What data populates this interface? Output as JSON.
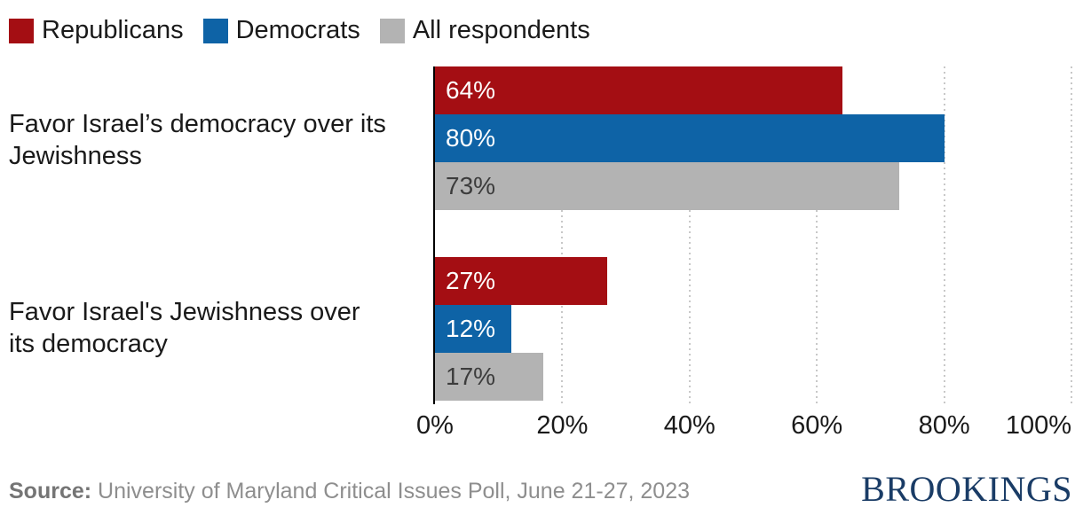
{
  "legend": {
    "items": [
      {
        "label": "Republicans"
      },
      {
        "label": "Democrats"
      },
      {
        "label": "All respondents"
      }
    ]
  },
  "chart_data": {
    "type": "bar",
    "orientation": "horizontal",
    "title": "",
    "xlabel": "",
    "ylabel": "",
    "xlim": [
      0,
      100
    ],
    "x_ticks": [
      "0%",
      "20%",
      "40%",
      "60%",
      "80%",
      "100%"
    ],
    "grid": "dotted-vertical",
    "legend_position": "top-left",
    "value_suffix": "%",
    "categories": [
      "Favor Israel’s democracy over its Jewishness",
      "Favor Israel's Jewishness over its democracy"
    ],
    "category_lines": [
      [
        "Favor Israel’s democracy over its",
        "Jewishness"
      ],
      [
        "Favor Israel's Jewishness over",
        "its democracy"
      ]
    ],
    "series": [
      {
        "name": "Republicans",
        "color": "#a40e13",
        "label_color": "#ffffff",
        "values": [
          64,
          27
        ]
      },
      {
        "name": "Democrats",
        "color": "#0e63a6",
        "label_color": "#ffffff",
        "values": [
          80,
          12
        ]
      },
      {
        "name": "All respondents",
        "color": "#b3b3b3",
        "label_color": "#3c3c3c",
        "values": [
          73,
          17
        ]
      }
    ],
    "value_labels": [
      [
        "64%",
        "80%",
        "73%"
      ],
      [
        "27%",
        "12%",
        "17%"
      ]
    ]
  },
  "colors": {
    "axis_line": "#000000",
    "gridline": "#c8c8c8",
    "text": "#1a1a1a",
    "brand_navy": "#1a3c66",
    "source_gray": "#8e8e8e"
  },
  "footer": {
    "source_label": "Source:",
    "source_text": " University of Maryland Critical Issues Poll, June 21-27, 2023",
    "brand": "BROOKINGS"
  }
}
